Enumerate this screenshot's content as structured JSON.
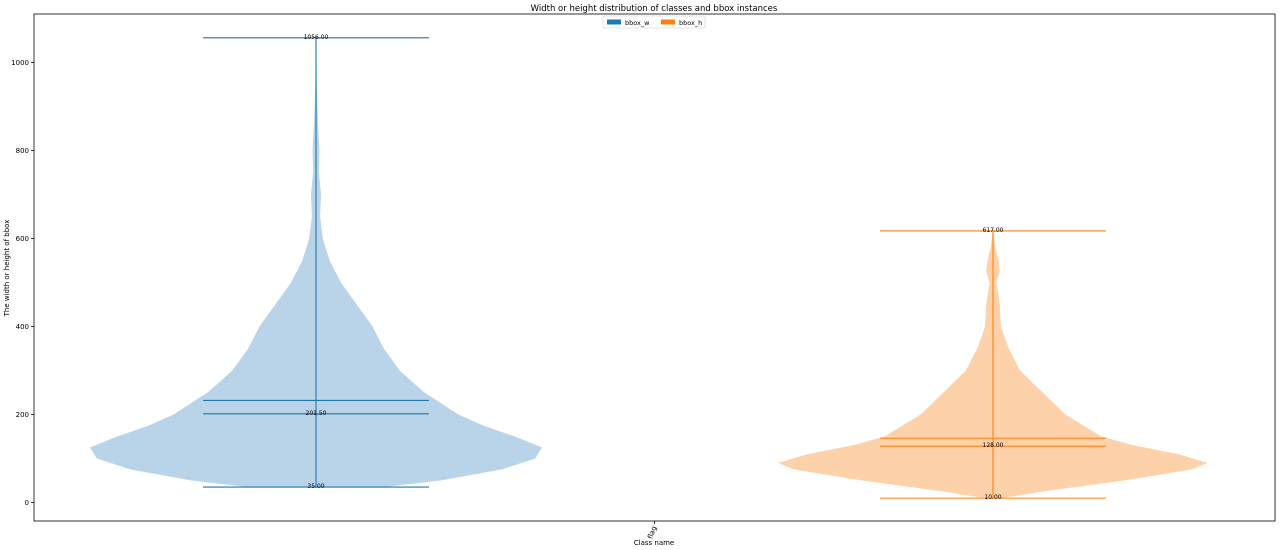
{
  "chart_data": {
    "type": "violin",
    "title": "Width or height distribution of classes and bbox instances",
    "xlabel": "Class name",
    "ylabel": "The width or height of bbox",
    "categories": [
      "flag"
    ],
    "ylim": [
      -42,
      1110
    ],
    "yticks": [
      0,
      200,
      400,
      600,
      800,
      1000
    ],
    "legend_position": "top-center",
    "grid": false,
    "series": [
      {
        "name": "bbox_w",
        "color": "#1f77b4",
        "fill": "#b9d4e8",
        "min": 35.0,
        "median": 201.5,
        "mean": 232,
        "max": 1056.0,
        "labels": {
          "max": "1056.00",
          "median": "201.50",
          "min": "35.00"
        },
        "density": [
          [
            35,
            0.3
          ],
          [
            50,
            0.55
          ],
          [
            75,
            0.82
          ],
          [
            100,
            0.97
          ],
          [
            125,
            1.0
          ],
          [
            150,
            0.88
          ],
          [
            175,
            0.74
          ],
          [
            200,
            0.63
          ],
          [
            250,
            0.48
          ],
          [
            300,
            0.37
          ],
          [
            350,
            0.3
          ],
          [
            400,
            0.25
          ],
          [
            450,
            0.18
          ],
          [
            500,
            0.11
          ],
          [
            550,
            0.06
          ],
          [
            600,
            0.03
          ],
          [
            650,
            0.018
          ],
          [
            700,
            0.022
          ],
          [
            750,
            0.013
          ],
          [
            800,
            0.015
          ],
          [
            850,
            0.01
          ],
          [
            900,
            0.006
          ],
          [
            950,
            0.003
          ],
          [
            1000,
            0.002
          ],
          [
            1056,
            0.001
          ]
        ]
      },
      {
        "name": "bbox_h",
        "color": "#ff7f0e",
        "fill": "#fdd2aa",
        "min": 10.0,
        "median": 128.0,
        "mean": 146,
        "max": 617.0,
        "labels": {
          "max": "617.00",
          "median": "128.00",
          "min": "10.00"
        },
        "density": [
          [
            10,
            0.04
          ],
          [
            25,
            0.22
          ],
          [
            50,
            0.58
          ],
          [
            75,
            0.88
          ],
          [
            90,
            0.95
          ],
          [
            110,
            0.82
          ],
          [
            130,
            0.62
          ],
          [
            150,
            0.48
          ],
          [
            175,
            0.4
          ],
          [
            200,
            0.32
          ],
          [
            250,
            0.22
          ],
          [
            300,
            0.12
          ],
          [
            350,
            0.07
          ],
          [
            400,
            0.035
          ],
          [
            450,
            0.03
          ],
          [
            500,
            0.015
          ],
          [
            525,
            0.03
          ],
          [
            550,
            0.025
          ],
          [
            575,
            0.012
          ],
          [
            600,
            0.005
          ],
          [
            617,
            0.002
          ]
        ]
      }
    ]
  }
}
